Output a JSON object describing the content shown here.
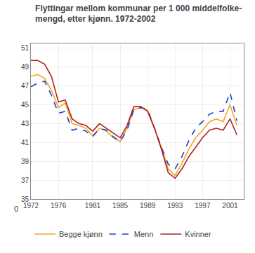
{
  "chart_data": {
    "type": "line",
    "title": "Flyttingar mellom kommunar per 1 000 middelfolke-\nmengd, etter kjønn. 1972-2002",
    "x": [
      1972,
      1973,
      1974,
      1975,
      1976,
      1977,
      1978,
      1979,
      1980,
      1981,
      1982,
      1983,
      1984,
      1985,
      1986,
      1987,
      1988,
      1989,
      1990,
      1991,
      1992,
      1993,
      1994,
      1995,
      1996,
      1997,
      1998,
      1999,
      2000,
      2001,
      2002
    ],
    "series": [
      {
        "name": "Begge kjønn",
        "color": "#f5a623",
        "line_style": "solid",
        "values": [
          48.0,
          48.2,
          47.8,
          46.5,
          44.7,
          45.2,
          43.0,
          42.8,
          42.5,
          41.7,
          42.5,
          42.2,
          41.5,
          41.1,
          42.5,
          44.5,
          44.7,
          44.4,
          42.5,
          40.5,
          38.2,
          37.5,
          38.8,
          40.3,
          41.5,
          42.3,
          43.2,
          43.5,
          43.2,
          45.0,
          42.8
        ]
      },
      {
        "name": "Menn",
        "color": "#1a3fcc",
        "line_style": "dashed",
        "values": [
          46.9,
          47.3,
          47.5,
          46.0,
          44.1,
          44.3,
          42.3,
          42.5,
          42.2,
          41.6,
          42.5,
          42.3,
          41.6,
          41.1,
          42.3,
          44.5,
          44.7,
          44.5,
          42.5,
          40.5,
          38.7,
          38.2,
          39.5,
          41.2,
          42.5,
          43.2,
          44.0,
          44.3,
          44.3,
          46.3,
          43.3
        ]
      },
      {
        "name": "Kvinner",
        "color": "#b22222",
        "line_style": "solid",
        "values": [
          49.7,
          49.7,
          49.3,
          48.0,
          45.3,
          45.5,
          43.5,
          43.0,
          42.8,
          42.2,
          43.0,
          42.5,
          42.0,
          41.5,
          42.8,
          44.8,
          44.8,
          44.3,
          42.5,
          40.3,
          37.8,
          37.2,
          38.2,
          39.5,
          40.5,
          41.5,
          42.3,
          42.5,
          42.3,
          43.5,
          41.8
        ]
      }
    ],
    "xlim": [
      1972,
      2003
    ],
    "xticks": [
      1972,
      1976,
      1981,
      1985,
      1989,
      1993,
      1997,
      2001
    ],
    "ylim": [
      35,
      51.5
    ],
    "yticks": [
      35,
      37,
      39,
      41,
      43,
      45,
      47,
      49,
      51
    ],
    "annotations": [
      "0"
    ],
    "grid": true,
    "legend": "bottom"
  }
}
